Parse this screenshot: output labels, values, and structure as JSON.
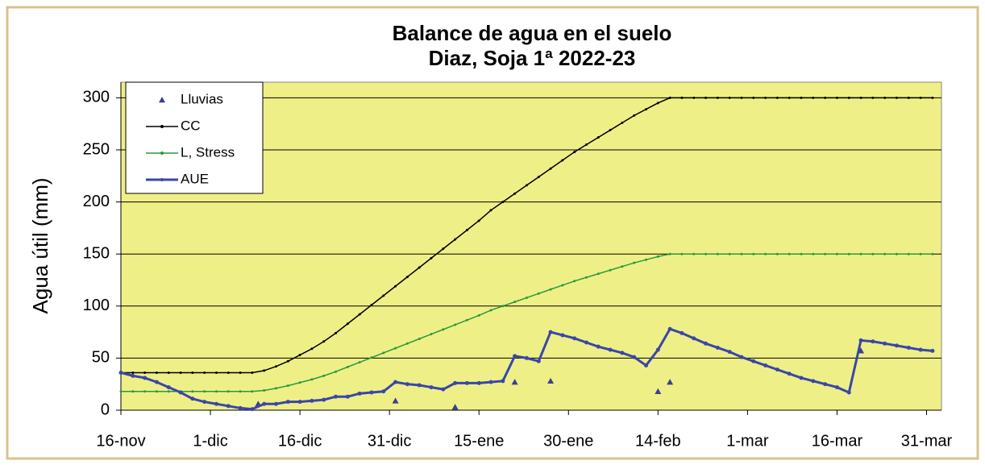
{
  "chart_data": {
    "type": "line",
    "title": [
      "Balance de agua en el suelo",
      "Diaz, Soja 1ª 2022-23"
    ],
    "y_label": "Agua útil (mm)",
    "x": [
      0,
      2,
      4,
      6,
      8,
      10,
      12,
      14,
      16,
      18,
      20,
      22,
      24,
      26,
      28,
      30,
      32,
      34,
      36,
      38,
      40,
      42,
      44,
      46,
      48,
      50,
      52,
      54,
      56,
      58,
      60,
      62,
      64,
      66,
      68,
      70,
      72,
      74,
      76,
      78,
      80,
      82,
      84,
      86,
      88,
      90,
      92,
      94,
      96,
      98,
      100,
      102,
      104,
      106,
      108,
      110,
      112,
      114,
      116,
      118,
      120,
      122,
      124,
      126,
      128,
      130,
      132,
      134,
      136
    ],
    "xlim": [
      0,
      137.5
    ],
    "xticks": [
      {
        "value": 0,
        "label": "16-nov"
      },
      {
        "value": 15,
        "label": "1-dic"
      },
      {
        "value": 30,
        "label": "16-dic"
      },
      {
        "value": 45,
        "label": "31-dic"
      },
      {
        "value": 60,
        "label": "15-ene"
      },
      {
        "value": 75,
        "label": "30-ene"
      },
      {
        "value": 90,
        "label": "14-feb"
      },
      {
        "value": 105,
        "label": "1-mar"
      },
      {
        "value": 120,
        "label": "16-mar"
      },
      {
        "value": 135,
        "label": "31-mar"
      }
    ],
    "ylim": [
      0,
      315
    ],
    "yticks": [
      0,
      50,
      100,
      150,
      200,
      250,
      300
    ],
    "grid": true,
    "legend": "upper left",
    "plot_background": "#efef88",
    "series": [
      {
        "name": "Lluvias",
        "type": "scatter",
        "color": "#3a3f8f",
        "x": [
          23,
          46,
          56,
          66,
          72,
          90,
          92,
          124
        ],
        "values": [
          6,
          9,
          3,
          27,
          28,
          18,
          27,
          57
        ]
      },
      {
        "name": "CC",
        "color": "#000000",
        "values": [
          36,
          36,
          36,
          36,
          36,
          36,
          36,
          36,
          36,
          36,
          36,
          36,
          38,
          42,
          47,
          53,
          59,
          66,
          74,
          83,
          92,
          101,
          110,
          119,
          128,
          137,
          146,
          155,
          164,
          173,
          182,
          192,
          200,
          208,
          216,
          224,
          232,
          240,
          248,
          255,
          262,
          269,
          276,
          283,
          289,
          295,
          300,
          300,
          300,
          300,
          300,
          300,
          300,
          300,
          300,
          300,
          300,
          300,
          300,
          300,
          300,
          300,
          300,
          300,
          300,
          300,
          300,
          300,
          300
        ]
      },
      {
        "name": "L, Stress",
        "color": "#2a9a3a",
        "values": [
          18,
          18,
          18,
          18,
          18,
          18,
          18,
          18,
          18,
          18,
          18,
          18,
          19,
          21,
          23.5,
          26.5,
          29.5,
          33,
          37,
          41.5,
          46,
          50.5,
          55,
          59.5,
          64,
          68.5,
          73,
          77.5,
          82,
          86.5,
          91,
          96,
          100,
          104,
          108,
          112,
          116,
          120,
          124,
          127.5,
          131,
          134.5,
          138,
          141.5,
          144.5,
          147.5,
          150,
          150,
          150,
          150,
          150,
          150,
          150,
          150,
          150,
          150,
          150,
          150,
          150,
          150,
          150,
          150,
          150,
          150,
          150,
          150,
          150,
          150,
          150
        ]
      },
      {
        "name": "AUE",
        "color": "#3a46a8",
        "values": [
          36,
          33,
          31,
          27,
          22,
          17,
          11,
          8,
          6,
          4,
          2,
          1,
          6,
          6,
          8,
          8,
          9,
          10,
          13,
          13,
          16,
          17,
          18,
          27,
          25,
          24,
          22,
          20,
          26,
          26,
          26,
          27,
          28,
          52,
          50,
          47,
          75,
          72,
          69,
          65,
          61,
          58,
          55,
          51,
          43,
          58,
          78,
          74,
          69,
          64,
          60,
          56,
          51,
          47,
          43,
          39,
          35,
          31,
          28,
          25,
          22,
          17,
          67,
          66,
          64,
          62,
          60,
          58,
          57
        ]
      }
    ]
  }
}
